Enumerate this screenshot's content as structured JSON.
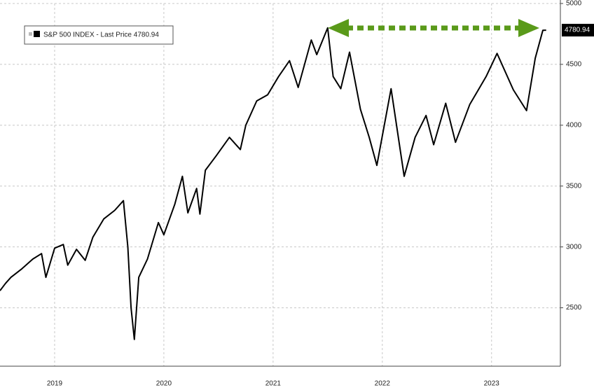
{
  "chart_data": {
    "type": "line",
    "series": [
      {
        "name": "S&P 500 INDEX - Last Price 4780.94",
        "color": "#000000",
        "x": [
          2019.0,
          2019.05,
          2019.1,
          2019.2,
          2019.3,
          2019.38,
          2019.42,
          2019.5,
          2019.58,
          2019.62,
          2019.7,
          2019.78,
          2019.85,
          2019.95,
          2020.05,
          2020.13,
          2020.17,
          2020.2,
          2020.23,
          2020.27,
          2020.35,
          2020.45,
          2020.5,
          2020.6,
          2020.67,
          2020.72,
          2020.8,
          2020.83,
          2020.88,
          2020.98,
          2021.1,
          2021.2,
          2021.25,
          2021.35,
          2021.45,
          2021.55,
          2021.65,
          2021.73,
          2021.85,
          2021.9,
          2022.0,
          2022.05,
          2022.12,
          2022.2,
          2022.3,
          2022.38,
          2022.45,
          2022.58,
          2022.7,
          2022.8,
          2022.9,
          2022.97,
          2023.08,
          2023.17,
          2023.3,
          2023.45,
          2023.55,
          2023.7,
          2023.82,
          2023.9,
          2023.97,
          2024.0
        ],
        "values": [
          2640,
          2700,
          2750,
          2820,
          2900,
          2945,
          2750,
          2990,
          3020,
          2850,
          2980,
          2890,
          3080,
          3230,
          3300,
          3380,
          3000,
          2500,
          2240,
          2750,
          2900,
          3200,
          3100,
          3350,
          3580,
          3280,
          3480,
          3270,
          3630,
          3750,
          3900,
          3800,
          4000,
          4200,
          4250,
          4400,
          4530,
          4310,
          4700,
          4580,
          4800,
          4400,
          4300,
          4600,
          4130,
          3900,
          3670,
          4300,
          3580,
          3900,
          4080,
          3840,
          4180,
          3860,
          4170,
          4400,
          4590,
          4290,
          4120,
          4550,
          4780,
          4780.94
        ]
      }
    ],
    "xlim": [
      2019.0,
      2024.13
    ],
    "xticks": [
      {
        "value": 2019.5,
        "label": "2019"
      },
      {
        "value": 2020.5,
        "label": "2020"
      },
      {
        "value": 2021.5,
        "label": "2021"
      },
      {
        "value": 2022.5,
        "label": "2022"
      },
      {
        "value": 2023.5,
        "label": "2023"
      }
    ],
    "ylim": [
      2020,
      5000
    ],
    "yticks": [
      2500,
      3000,
      3500,
      4000,
      4500,
      5000
    ],
    "grid": true,
    "legend": "top-left"
  }
}
